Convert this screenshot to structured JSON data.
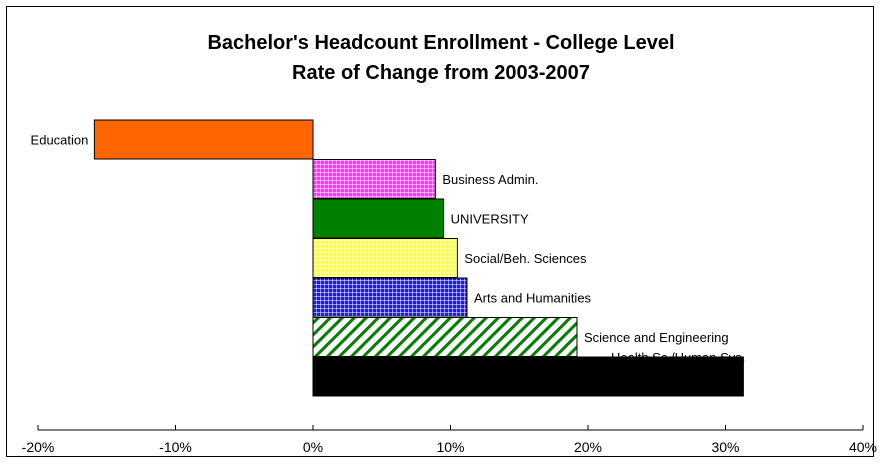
{
  "chart_data": {
    "type": "bar",
    "orientation": "horizontal",
    "title": "Bachelor's Headcount Enrollment - College Level",
    "subtitle": "Rate of Change from 2003-2007",
    "categories": [
      "Education",
      "Business Admin.",
      "UNIVERSITY",
      "Social/Beh. Sciences",
      "Arts and Humanities",
      "Science and Engineering",
      "Health Sc./Human Svs."
    ],
    "values": [
      -15.9,
      8.9,
      9.5,
      10.5,
      11.2,
      19.2,
      31.3
    ],
    "value_unit": "%",
    "colors": [
      "#ff6600",
      "#ff33ff",
      "#008000",
      "#ffff33",
      "#1f1fd6",
      "#008000",
      "#000000"
    ],
    "patterns": [
      "solid",
      "grid",
      "solid",
      "grid",
      "grid",
      "diagonal",
      "solid"
    ],
    "xlim": [
      -20,
      40
    ],
    "xticks": [
      "-20%",
      "-10%",
      "0%",
      "10%",
      "20%",
      "30%",
      "40%"
    ],
    "grid": false,
    "legend": "none"
  }
}
